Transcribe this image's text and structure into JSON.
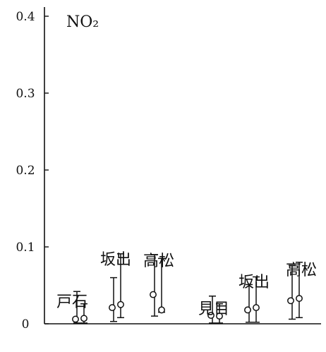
{
  "colors": {
    "ink": "#111111",
    "background": "#ffffff"
  },
  "chart_data": {
    "type": "scatter",
    "title": "NO₂",
    "ylim": [
      0,
      0.44
    ],
    "yticks": [
      {
        "value": 0,
        "label": "0"
      },
      {
        "value": 0.1,
        "label": "0.1"
      },
      {
        "value": 0.2,
        "label": "0.2"
      },
      {
        "value": 0.3,
        "label": "0.3"
      },
      {
        "value": 0.4,
        "label": "0.4"
      }
    ],
    "grid": false,
    "groups": [
      {
        "label": "戸石",
        "points": [
          {
            "mean": 0.006,
            "low": 0.001,
            "high": 0.042
          },
          {
            "mean": 0.007,
            "low": 0.001,
            "high": 0.026
          }
        ]
      },
      {
        "label": "坂出",
        "points": [
          {
            "mean": 0.021,
            "low": 0.003,
            "high": 0.06
          },
          {
            "mean": 0.025,
            "low": 0.008,
            "high": 0.091
          }
        ]
      },
      {
        "label": "高松",
        "points": [
          {
            "mean": 0.038,
            "low": 0.01,
            "high": 0.09
          },
          {
            "mean": 0.018,
            "low": 0.015,
            "high": 0.085
          }
        ]
      },
      {
        "label": "見目",
        "points": [
          {
            "mean": 0.011,
            "low": 0.001,
            "high": 0.036
          },
          {
            "mean": 0.01,
            "low": 0.001,
            "high": 0.026
          }
        ]
      },
      {
        "label": "坂出",
        "points": [
          {
            "mean": 0.018,
            "low": 0.002,
            "high": 0.051
          },
          {
            "mean": 0.021,
            "low": 0.002,
            "high": 0.061
          }
        ]
      },
      {
        "label": "高松",
        "points": [
          {
            "mean": 0.03,
            "low": 0.006,
            "high": 0.076
          },
          {
            "mean": 0.033,
            "low": 0.008,
            "high": 0.08
          }
        ]
      }
    ]
  }
}
